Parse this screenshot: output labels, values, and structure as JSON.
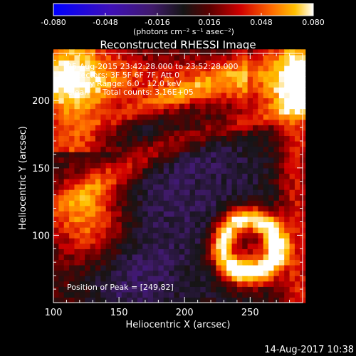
{
  "chart_data": {
    "type": "heatmap",
    "title": "Reconstructed RHESSI Image",
    "xlabel": "Heliocentric X (arcsec)",
    "ylabel": "Heliocentric Y (arcsec)",
    "xlim": [
      100,
      290
    ],
    "ylim": [
      50,
      235
    ],
    "x_ticks": [
      100,
      150,
      200,
      250
    ],
    "y_ticks": [
      100,
      150,
      200
    ],
    "colorbar": {
      "range": [
        -0.08,
        0.08
      ],
      "tick_labels": [
        "-0.080",
        "-0.048",
        "-0.016",
        "0.016",
        "0.048",
        "0.080"
      ],
      "unit_label": "(photons cm⁻² s⁻¹ asec⁻²)",
      "colormap": [
        "#0000ff",
        "#3f10b8",
        "#401a6b",
        "#151515",
        "#5a0000",
        "#d00000",
        "#ff6a00",
        "#ffc000",
        "#ffffff"
      ]
    },
    "annotations": {
      "time_range": "25-Aug-2015 23:42:28.000 to 23:52:28.000",
      "detectors": "Detectors: 3F 5F 6F 7F, Att 0",
      "energy": "Energy Range: 6.0 - 12.0 keV",
      "method": "Clean",
      "counts": "Total counts: 3.16E+05",
      "peak": "Position of Peak = [249,82]"
    },
    "peak": [
      249,
      82
    ]
  },
  "footer_timestamp": "14-Aug-2017 10:38"
}
